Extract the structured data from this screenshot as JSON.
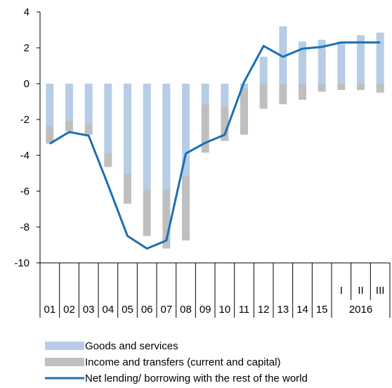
{
  "chart_data": {
    "type": "bar",
    "stacked": true,
    "categories": [
      "01",
      "02",
      "03",
      "04",
      "05",
      "06",
      "07",
      "08",
      "09",
      "10",
      "11",
      "12",
      "13",
      "14",
      "15",
      "I",
      "II",
      "III"
    ],
    "year_group_label": "2016",
    "ylim": [
      -10,
      4
    ],
    "yticks": [
      4,
      2,
      0,
      -2,
      -4,
      -6,
      -8,
      -10
    ],
    "series": [
      {
        "name": "Goods and services",
        "kind": "bar",
        "color": "#b7cde6",
        "values": [
          -2.35,
          -2.05,
          -2.25,
          -3.85,
          -5.0,
          -5.9,
          -5.9,
          -5.15,
          -1.15,
          -1.3,
          -0.25,
          1.5,
          3.2,
          2.35,
          2.45,
          2.35,
          2.7,
          2.85
        ]
      },
      {
        "name": "Income and transfers (current and capital)",
        "kind": "bar",
        "color": "#bfbfbf",
        "values": [
          -1.0,
          -0.6,
          -0.6,
          -0.8,
          -1.7,
          -2.6,
          -3.3,
          -3.6,
          -2.7,
          -1.9,
          -2.6,
          -1.4,
          -1.15,
          -0.9,
          -0.45,
          -0.35,
          -0.35,
          -0.5
        ]
      },
      {
        "name": "Net lending/ borrowing with the rest of the world",
        "kind": "line",
        "color": "#1b6fb5",
        "values": [
          -3.35,
          -2.7,
          -2.9,
          -5.65,
          -8.5,
          -9.2,
          -8.75,
          -3.9,
          -3.3,
          -2.85,
          0.1,
          2.1,
          1.5,
          1.95,
          2.05,
          2.3,
          2.3,
          2.3
        ]
      }
    ],
    "legend_position": "bottom"
  }
}
